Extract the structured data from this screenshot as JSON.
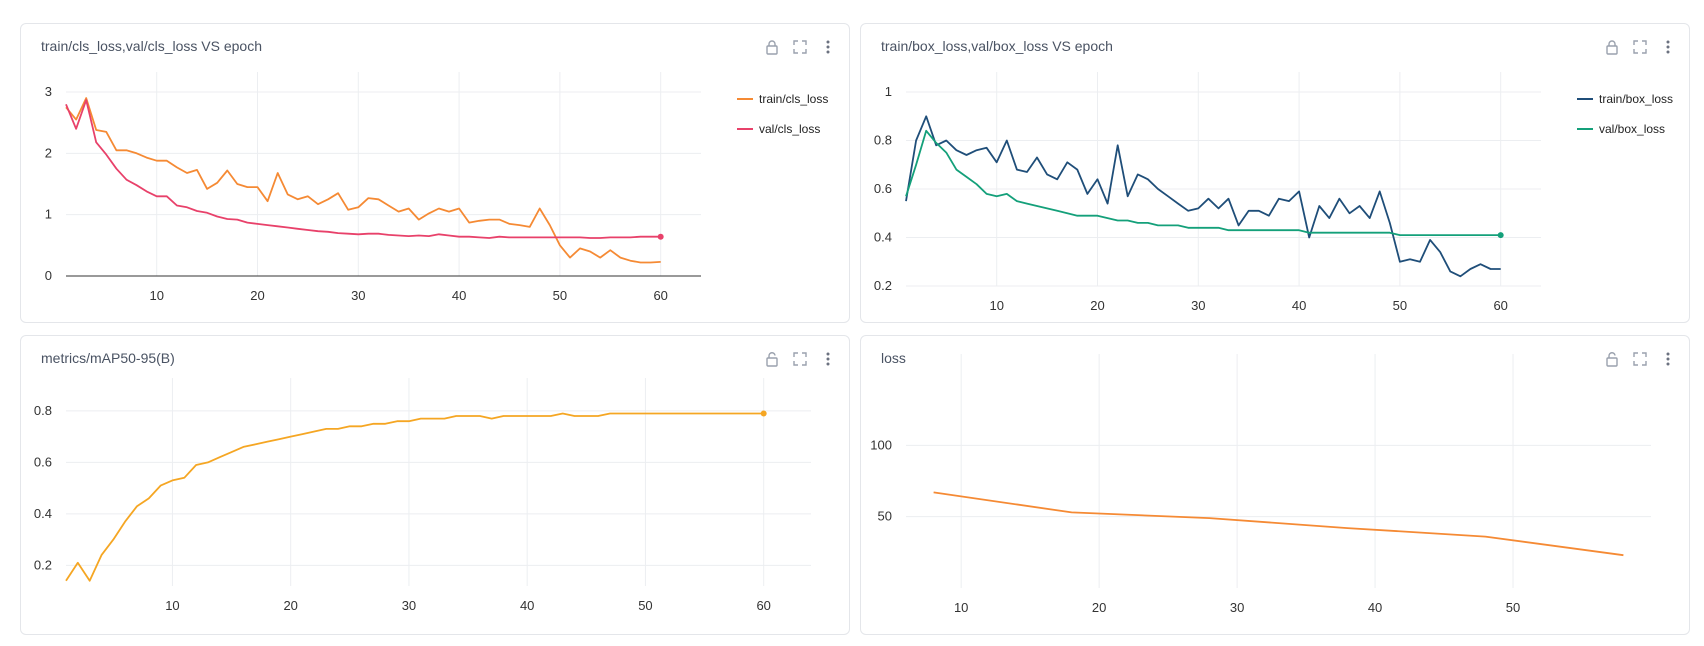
{
  "panels": [
    {
      "title": "train/cls_loss,val/cls_loss VS epoch",
      "lock_icon": "lock-closed-icon",
      "chart_data": {
        "type": "line",
        "title": "train/cls_loss,val/cls_loss VS epoch",
        "xlabel": "",
        "ylabel": "",
        "xlim": [
          1,
          64
        ],
        "ylim": [
          0,
          3
        ],
        "xticks": [
          10,
          20,
          30,
          40,
          50,
          60
        ],
        "yticks": [
          0,
          1,
          2,
          3
        ],
        "legend": "right",
        "series": [
          {
            "name": "train/cls_loss",
            "color": "#f58a34",
            "x": [
              1,
              2,
              3,
              4,
              5,
              6,
              7,
              8,
              9,
              10,
              11,
              12,
              13,
              14,
              15,
              16,
              17,
              18,
              19,
              20,
              21,
              22,
              23,
              24,
              25,
              26,
              27,
              28,
              29,
              30,
              31,
              32,
              33,
              34,
              35,
              36,
              37,
              38,
              39,
              40,
              41,
              42,
              43,
              44,
              45,
              46,
              47,
              48,
              49,
              50,
              51,
              52,
              53,
              54,
              55,
              56,
              57,
              58,
              59,
              60
            ],
            "y": [
              2.75,
              2.55,
              2.9,
              2.38,
              2.35,
              2.05,
              2.05,
              2.0,
              1.93,
              1.88,
              1.88,
              1.77,
              1.68,
              1.73,
              1.42,
              1.52,
              1.72,
              1.5,
              1.45,
              1.45,
              1.22,
              1.68,
              1.33,
              1.25,
              1.3,
              1.17,
              1.25,
              1.35,
              1.08,
              1.12,
              1.27,
              1.25,
              1.15,
              1.05,
              1.1,
              0.92,
              1.02,
              1.1,
              1.05,
              1.1,
              0.87,
              0.9,
              0.92,
              0.92,
              0.85,
              0.83,
              0.8,
              1.1,
              0.83,
              0.5,
              0.3,
              0.45,
              0.4,
              0.3,
              0.42,
              0.3,
              0.25,
              0.22,
              0.22,
              0.23
            ]
          },
          {
            "name": "val/cls_loss",
            "color": "#e8416a",
            "x": [
              1,
              2,
              3,
              4,
              5,
              6,
              7,
              8,
              9,
              10,
              11,
              12,
              13,
              14,
              15,
              16,
              17,
              18,
              19,
              20,
              21,
              22,
              23,
              24,
              25,
              26,
              27,
              28,
              29,
              30,
              31,
              32,
              33,
              34,
              35,
              36,
              37,
              38,
              39,
              40,
              41,
              42,
              43,
              44,
              45,
              46,
              47,
              48,
              49,
              50,
              51,
              52,
              53,
              54,
              55,
              56,
              57,
              58,
              59,
              60
            ],
            "y": [
              2.8,
              2.4,
              2.87,
              2.18,
              1.98,
              1.75,
              1.57,
              1.48,
              1.38,
              1.3,
              1.3,
              1.15,
              1.12,
              1.06,
              1.03,
              0.97,
              0.93,
              0.92,
              0.87,
              0.85,
              0.83,
              0.81,
              0.79,
              0.77,
              0.75,
              0.73,
              0.72,
              0.7,
              0.69,
              0.68,
              0.69,
              0.69,
              0.67,
              0.66,
              0.65,
              0.66,
              0.65,
              0.68,
              0.66,
              0.64,
              0.64,
              0.63,
              0.62,
              0.64,
              0.63,
              0.63,
              0.63,
              0.63,
              0.63,
              0.63,
              0.63,
              0.63,
              0.62,
              0.62,
              0.63,
              0.63,
              0.63,
              0.64,
              0.64,
              0.64
            ]
          }
        ]
      }
    },
    {
      "title": "train/box_loss,val/box_loss VS epoch",
      "lock_icon": "lock-closed-icon",
      "chart_data": {
        "type": "line",
        "title": "train/box_loss,val/box_loss VS epoch",
        "xlabel": "",
        "ylabel": "",
        "xlim": [
          1,
          64
        ],
        "ylim": [
          0.2,
          1.0
        ],
        "xticks": [
          10,
          20,
          30,
          40,
          50,
          60
        ],
        "yticks": [
          0.2,
          0.4,
          0.6,
          0.8,
          1
        ],
        "legend": "right",
        "series": [
          {
            "name": "train/box_loss",
            "color": "#1f4e79",
            "x": [
              1,
              2,
              3,
              4,
              5,
              6,
              7,
              8,
              9,
              10,
              11,
              12,
              13,
              14,
              15,
              16,
              17,
              18,
              19,
              20,
              21,
              22,
              23,
              24,
              25,
              26,
              27,
              28,
              29,
              30,
              31,
              32,
              33,
              34,
              35,
              36,
              37,
              38,
              39,
              40,
              41,
              42,
              43,
              44,
              45,
              46,
              47,
              48,
              49,
              50,
              51,
              52,
              53,
              54,
              55,
              56,
              57,
              58,
              59,
              60
            ],
            "y": [
              0.55,
              0.8,
              0.9,
              0.78,
              0.8,
              0.76,
              0.74,
              0.76,
              0.77,
              0.71,
              0.8,
              0.68,
              0.67,
              0.73,
              0.66,
              0.64,
              0.71,
              0.68,
              0.58,
              0.64,
              0.54,
              0.78,
              0.57,
              0.66,
              0.64,
              0.6,
              0.57,
              0.54,
              0.51,
              0.52,
              0.56,
              0.52,
              0.56,
              0.45,
              0.51,
              0.51,
              0.49,
              0.56,
              0.55,
              0.59,
              0.4,
              0.53,
              0.48,
              0.56,
              0.5,
              0.53,
              0.48,
              0.59,
              0.46,
              0.3,
              0.31,
              0.3,
              0.39,
              0.34,
              0.26,
              0.24,
              0.27,
              0.29,
              0.27,
              0.27
            ]
          },
          {
            "name": "val/box_loss",
            "color": "#14a07a",
            "x": [
              1,
              2,
              3,
              4,
              5,
              6,
              7,
              8,
              9,
              10,
              11,
              12,
              13,
              14,
              15,
              16,
              17,
              18,
              19,
              20,
              21,
              22,
              23,
              24,
              25,
              26,
              27,
              28,
              29,
              30,
              31,
              32,
              33,
              34,
              35,
              36,
              37,
              38,
              39,
              40,
              41,
              42,
              43,
              44,
              45,
              46,
              47,
              48,
              49,
              50,
              51,
              52,
              53,
              54,
              55,
              56,
              57,
              58,
              59,
              60
            ],
            "y": [
              0.57,
              0.7,
              0.84,
              0.79,
              0.75,
              0.68,
              0.65,
              0.62,
              0.58,
              0.57,
              0.58,
              0.55,
              0.54,
              0.53,
              0.52,
              0.51,
              0.5,
              0.49,
              0.49,
              0.49,
              0.48,
              0.47,
              0.47,
              0.46,
              0.46,
              0.45,
              0.45,
              0.45,
              0.44,
              0.44,
              0.44,
              0.44,
              0.43,
              0.43,
              0.43,
              0.43,
              0.43,
              0.43,
              0.43,
              0.43,
              0.42,
              0.42,
              0.42,
              0.42,
              0.42,
              0.42,
              0.42,
              0.42,
              0.42,
              0.41,
              0.41,
              0.41,
              0.41,
              0.41,
              0.41,
              0.41,
              0.41,
              0.41,
              0.41,
              0.41
            ]
          }
        ]
      }
    },
    {
      "title": "metrics/mAP50-95(B)",
      "lock_icon": "lock-open-icon",
      "chart_data": {
        "type": "line",
        "title": "metrics/mAP50-95(B)",
        "xlabel": "",
        "ylabel": "",
        "xlim": [
          1,
          64
        ],
        "ylim": [
          0.12,
          0.85
        ],
        "xticks": [
          10,
          20,
          30,
          40,
          50,
          60
        ],
        "yticks": [
          0.2,
          0.4,
          0.6,
          0.8
        ],
        "legend": "none",
        "series": [
          {
            "name": "",
            "color": "#f5a623",
            "x": [
              1,
              2,
              3,
              4,
              5,
              6,
              7,
              8,
              9,
              10,
              11,
              12,
              13,
              14,
              15,
              16,
              17,
              18,
              19,
              20,
              21,
              22,
              23,
              24,
              25,
              26,
              27,
              28,
              29,
              30,
              31,
              32,
              33,
              34,
              35,
              36,
              37,
              38,
              39,
              40,
              41,
              42,
              43,
              44,
              45,
              46,
              47,
              48,
              49,
              50,
              51,
              52,
              53,
              54,
              55,
              56,
              57,
              58,
              59,
              60
            ],
            "y": [
              0.14,
              0.21,
              0.14,
              0.24,
              0.3,
              0.37,
              0.43,
              0.46,
              0.51,
              0.53,
              0.54,
              0.59,
              0.6,
              0.62,
              0.64,
              0.66,
              0.67,
              0.68,
              0.69,
              0.7,
              0.71,
              0.72,
              0.73,
              0.73,
              0.74,
              0.74,
              0.75,
              0.75,
              0.76,
              0.76,
              0.77,
              0.77,
              0.77,
              0.78,
              0.78,
              0.78,
              0.77,
              0.78,
              0.78,
              0.78,
              0.78,
              0.78,
              0.79,
              0.78,
              0.78,
              0.78,
              0.79,
              0.79,
              0.79,
              0.79,
              0.79,
              0.79,
              0.79,
              0.79,
              0.79,
              0.79,
              0.79,
              0.79,
              0.79,
              0.79
            ]
          }
        ]
      }
    },
    {
      "title": "loss",
      "lock_icon": "lock-open-icon",
      "chart_data": {
        "type": "line",
        "title": "loss",
        "xlabel": "",
        "ylabel": "",
        "xlim": [
          6,
          60
        ],
        "ylim": [
          0,
          150
        ],
        "xticks": [
          10,
          20,
          30,
          40,
          50
        ],
        "yticks": [
          50,
          100
        ],
        "legend": "none",
        "series": [
          {
            "name": "",
            "color": "#f58a34",
            "x": [
              8,
              18,
              28,
              38,
              48,
              58
            ],
            "y": [
              67,
              53,
              49,
              42,
              36,
              23
            ]
          }
        ]
      }
    }
  ]
}
